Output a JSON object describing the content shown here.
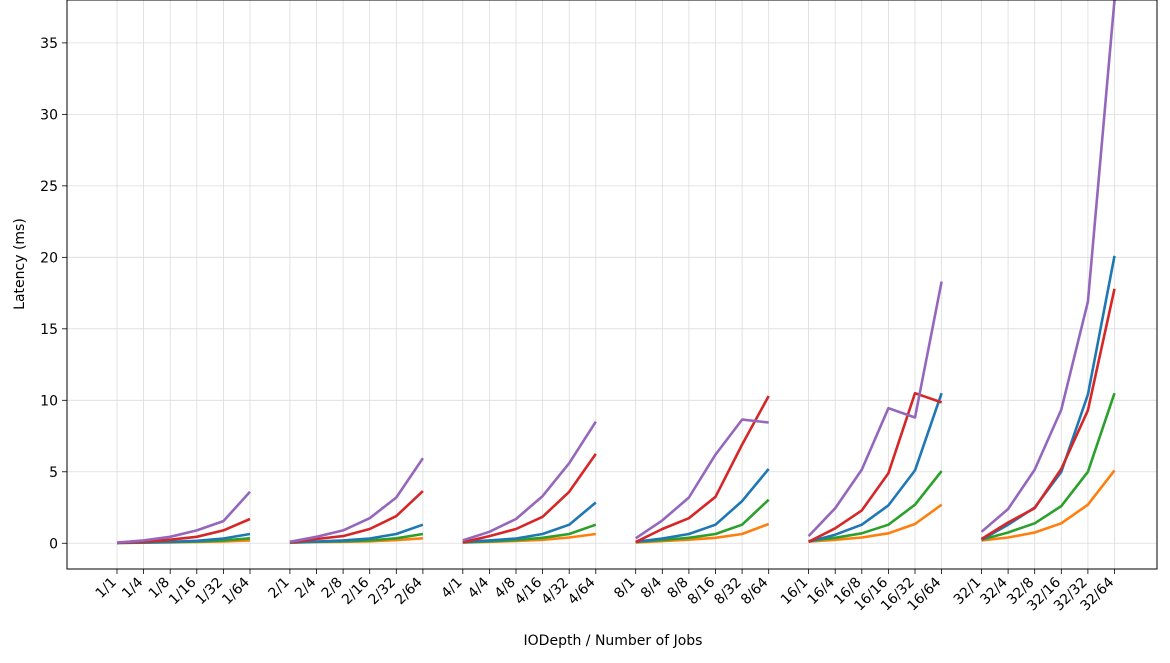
{
  "chart_data": {
    "type": "line",
    "xlabel": "IODepth / Number of Jobs",
    "ylabel": "Latency (ms)",
    "ylim": [
      -1.8,
      38
    ],
    "yticks": [
      0,
      5,
      10,
      15,
      20,
      25,
      30,
      35
    ],
    "grid": true,
    "legend": "none",
    "categories": [
      "1/1",
      "1/4",
      "1/8",
      "1/16",
      "1/32",
      "1/64",
      "2/1",
      "2/4",
      "2/8",
      "2/16",
      "2/32",
      "2/64",
      "4/1",
      "4/4",
      "4/8",
      "4/16",
      "4/32",
      "4/64",
      "8/1",
      "8/4",
      "8/8",
      "8/16",
      "8/32",
      "8/64",
      "16/1",
      "16/4",
      "16/8",
      "16/16",
      "16/32",
      "16/64",
      "32/1",
      "32/4",
      "32/8",
      "32/16",
      "32/32",
      "32/64"
    ],
    "groups": 6,
    "group_size": 6,
    "series": [
      {
        "color": "#ff7f0e",
        "values": [
          0.02,
          0.04,
          0.06,
          0.09,
          0.13,
          0.2,
          0.04,
          0.08,
          0.1,
          0.14,
          0.22,
          0.35,
          0.05,
          0.1,
          0.16,
          0.24,
          0.4,
          0.65,
          0.05,
          0.15,
          0.25,
          0.38,
          0.65,
          1.35,
          0.12,
          0.24,
          0.4,
          0.7,
          1.35,
          2.7,
          0.2,
          0.4,
          0.75,
          1.4,
          2.7,
          5.1
        ]
      },
      {
        "color": "#2ca02c",
        "values": [
          0.02,
          0.05,
          0.08,
          0.12,
          0.2,
          0.35,
          0.05,
          0.1,
          0.14,
          0.2,
          0.35,
          0.65,
          0.06,
          0.14,
          0.22,
          0.38,
          0.65,
          1.3,
          0.1,
          0.22,
          0.38,
          0.65,
          1.3,
          3.05,
          0.15,
          0.38,
          0.7,
          1.3,
          2.7,
          5.05,
          0.25,
          0.75,
          1.4,
          2.6,
          5.0,
          10.5
        ]
      },
      {
        "color": "#1f77b4",
        "values": [
          0.03,
          0.06,
          0.1,
          0.17,
          0.33,
          0.65,
          0.06,
          0.12,
          0.2,
          0.33,
          0.65,
          1.3,
          0.08,
          0.2,
          0.33,
          0.65,
          1.3,
          2.85,
          0.1,
          0.33,
          0.65,
          1.3,
          2.95,
          5.2,
          0.1,
          0.6,
          1.3,
          2.65,
          5.1,
          10.5,
          0.25,
          1.3,
          2.5,
          5.0,
          10.4,
          20.1
        ]
      },
      {
        "color": "#d62728",
        "values": [
          0.03,
          0.1,
          0.25,
          0.45,
          0.9,
          1.7,
          0.06,
          0.3,
          0.5,
          1.0,
          1.9,
          3.65,
          0.07,
          0.5,
          1.0,
          1.85,
          3.6,
          6.25,
          0.08,
          1.0,
          1.75,
          3.25,
          6.9,
          10.3,
          0.1,
          1.05,
          2.3,
          4.9,
          10.5,
          9.85,
          0.3,
          1.45,
          2.45,
          5.2,
          9.3,
          17.8
        ]
      },
      {
        "color": "#9467bd",
        "values": [
          0.05,
          0.2,
          0.45,
          0.9,
          1.55,
          3.6,
          0.1,
          0.45,
          0.9,
          1.75,
          3.2,
          5.95,
          0.2,
          0.8,
          1.7,
          3.3,
          5.6,
          8.5,
          0.35,
          1.6,
          3.2,
          6.2,
          8.65,
          8.45,
          0.5,
          2.45,
          5.15,
          9.45,
          8.8,
          18.3,
          0.8,
          2.4,
          5.15,
          9.35,
          16.9,
          38.0
        ]
      }
    ]
  }
}
